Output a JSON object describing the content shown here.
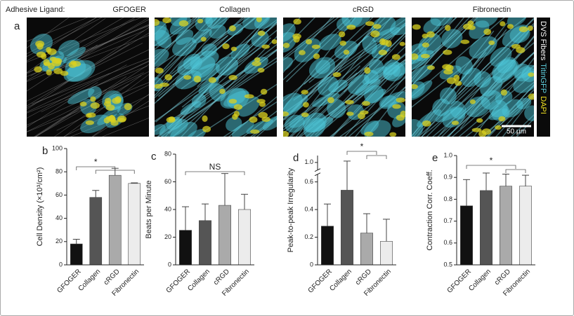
{
  "figure": {
    "panel": "a",
    "heading": "Adhesive Ligand:",
    "titles": [
      "GFOGER",
      "Collagen",
      "cRGD",
      "Fibronectin"
    ],
    "legend": [
      "DVS Fibers",
      "TitinGFP",
      "DAPI"
    ],
    "legend_colors": [
      "#ffffff",
      "#5fd0e0",
      "#f0e020"
    ],
    "scale_bar": "50 μm"
  },
  "chart_data": [
    {
      "type": "bar",
      "panel": "b",
      "ylabel": "Cell Density (×10³/cm²)",
      "categories": [
        "GFOGER",
        "Collagen",
        "cRGD",
        "Fibronectin"
      ],
      "values": [
        18,
        58,
        77,
        70
      ],
      "errors": [
        4,
        6,
        6,
        0.5
      ],
      "colors": [
        "#111111",
        "#555555",
        "#aaaaaa",
        "#ececec"
      ],
      "ylim": [
        0,
        100
      ],
      "yticks": [
        0,
        20,
        40,
        60,
        80,
        100
      ],
      "annotation": "*"
    },
    {
      "type": "bar",
      "panel": "c",
      "ylabel": "Beats per Minute",
      "categories": [
        "GFOGER",
        "Collagen",
        "cRGD",
        "Fibronectin"
      ],
      "values": [
        25,
        32,
        43,
        40
      ],
      "errors": [
        17,
        12,
        23,
        11
      ],
      "colors": [
        "#111111",
        "#555555",
        "#aaaaaa",
        "#ececec"
      ],
      "ylim": [
        0,
        80
      ],
      "yticks": [
        0,
        20,
        40,
        60,
        80
      ],
      "annotation": "NS"
    },
    {
      "type": "bar",
      "panel": "d",
      "ylabel": "Peak-to-peak Irregularity",
      "categories": [
        "GFOGER",
        "Collagen",
        "cRGD",
        "Fibronectin"
      ],
      "values": [
        0.28,
        0.54,
        0.23,
        0.17
      ],
      "errors": [
        0.16,
        0.47,
        0.14,
        0.16
      ],
      "colors": [
        "#111111",
        "#555555",
        "#aaaaaa",
        "#ececec"
      ],
      "ylim": [
        0,
        1.05
      ],
      "ybreak": [
        0.65,
        0.95
      ],
      "yticks": [
        0,
        0.2,
        0.4,
        0.6,
        {
          "value": 1,
          "label": "1.0"
        }
      ],
      "annotation": "*"
    },
    {
      "type": "bar",
      "panel": "e",
      "ylabel": "Contraction Corr. Coeff.",
      "categories": [
        "GFOGER",
        "Collagen",
        "cRGD",
        "Fibronectin"
      ],
      "values": [
        0.77,
        0.84,
        0.86,
        0.86
      ],
      "errors": [
        0.12,
        0.08,
        0.055,
        0.05
      ],
      "colors": [
        "#111111",
        "#555555",
        "#aaaaaa",
        "#ececec"
      ],
      "ylim": [
        0.5,
        1.0
      ],
      "yticks": [
        0.5,
        0.6,
        0.7,
        0.8,
        0.9,
        {
          "value": 1,
          "label": "1.0"
        }
      ],
      "annotation": "*"
    }
  ]
}
